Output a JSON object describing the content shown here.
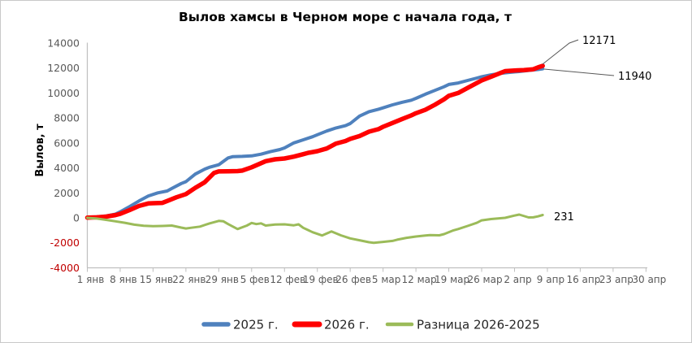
{
  "frame": {
    "background": "#FFFFFF",
    "border_color": "#C9C9C9"
  },
  "title": {
    "text": "Вылов хамсы в Черном море с начала года, т"
  },
  "axis_style": {
    "axis_color": "#BFBFBF",
    "label_color": "#595959",
    "negative_label_color": "#C00000"
  },
  "annotations": [
    {
      "text": "12171"
    },
    {
      "text": "11940"
    },
    {
      "text": "231"
    }
  ],
  "chart_data": {
    "type": "line",
    "title": "Вылов хамсы в Черном море с начала года, т",
    "xlabel": "",
    "ylabel": "Вылов, т",
    "ylim": [
      -4000,
      14000
    ],
    "ytick_step": 2000,
    "grid": false,
    "legend_position": "bottom",
    "x_tick_labels": [
      "1 янв",
      "8 янв",
      "15 янв",
      "22 янв",
      "29 янв",
      "5 фев",
      "12 фев",
      "19 фев",
      "26 фев",
      "5 мар",
      "12 мар",
      "19 мар",
      "26 мар",
      "2 апр",
      "9 апр",
      "16 апр",
      "23 апр",
      "30 апр"
    ],
    "x_axis_note": "daily categories, day 0 = 1 янв, weekly tick labels, axis extends to 30 апр (day 119), data ends ~9 апр",
    "series": [
      {
        "name": "2025 г.",
        "color": "#4F81BD",
        "width": 4,
        "end_value_label": "11940",
        "points": [
          [
            0,
            30
          ],
          [
            2,
            80
          ],
          [
            4,
            150
          ],
          [
            6,
            300
          ],
          [
            7,
            480
          ],
          [
            9,
            900
          ],
          [
            11,
            1350
          ],
          [
            13,
            1750
          ],
          [
            15,
            2000
          ],
          [
            17,
            2150
          ],
          [
            18,
            2350
          ],
          [
            20,
            2750
          ],
          [
            21,
            2900
          ],
          [
            23,
            3500
          ],
          [
            25,
            3900
          ],
          [
            26,
            4050
          ],
          [
            28,
            4250
          ],
          [
            30,
            4800
          ],
          [
            31,
            4900
          ],
          [
            33,
            4920
          ],
          [
            35,
            4960
          ],
          [
            37,
            5100
          ],
          [
            39,
            5300
          ],
          [
            41,
            5470
          ],
          [
            42,
            5600
          ],
          [
            44,
            6000
          ],
          [
            46,
            6250
          ],
          [
            48,
            6500
          ],
          [
            49,
            6650
          ],
          [
            51,
            6950
          ],
          [
            53,
            7200
          ],
          [
            55,
            7380
          ],
          [
            56,
            7550
          ],
          [
            58,
            8150
          ],
          [
            60,
            8500
          ],
          [
            62,
            8700
          ],
          [
            63,
            8810
          ],
          [
            65,
            9050
          ],
          [
            67,
            9250
          ],
          [
            69,
            9420
          ],
          [
            70,
            9570
          ],
          [
            72,
            9900
          ],
          [
            74,
            10200
          ],
          [
            76,
            10500
          ],
          [
            77,
            10680
          ],
          [
            79,
            10800
          ],
          [
            81,
            11000
          ],
          [
            83,
            11200
          ],
          [
            84,
            11300
          ],
          [
            86,
            11450
          ],
          [
            88,
            11570
          ],
          [
            90,
            11650
          ],
          [
            92,
            11720
          ],
          [
            94,
            11800
          ],
          [
            96,
            11880
          ],
          [
            97,
            11940
          ]
        ]
      },
      {
        "name": "2026 г.",
        "color": "#FF0000",
        "width": 5.5,
        "end_value_label": "12171",
        "points": [
          [
            0,
            10
          ],
          [
            2,
            40
          ],
          [
            4,
            100
          ],
          [
            6,
            220
          ],
          [
            7,
            320
          ],
          [
            9,
            620
          ],
          [
            11,
            950
          ],
          [
            13,
            1150
          ],
          [
            14,
            1170
          ],
          [
            16,
            1200
          ],
          [
            17,
            1350
          ],
          [
            19,
            1650
          ],
          [
            21,
            1900
          ],
          [
            23,
            2400
          ],
          [
            25,
            2850
          ],
          [
            27,
            3600
          ],
          [
            28,
            3720
          ],
          [
            30,
            3730
          ],
          [
            32,
            3740
          ],
          [
            33,
            3780
          ],
          [
            35,
            4050
          ],
          [
            38,
            4540
          ],
          [
            40,
            4690
          ],
          [
            42,
            4750
          ],
          [
            44,
            4900
          ],
          [
            46,
            5100
          ],
          [
            47,
            5200
          ],
          [
            49,
            5340
          ],
          [
            51,
            5550
          ],
          [
            53,
            5950
          ],
          [
            55,
            6150
          ],
          [
            56,
            6320
          ],
          [
            58,
            6550
          ],
          [
            60,
            6900
          ],
          [
            62,
            7100
          ],
          [
            63,
            7290
          ],
          [
            65,
            7600
          ],
          [
            67,
            7900
          ],
          [
            69,
            8200
          ],
          [
            70,
            8380
          ],
          [
            72,
            8650
          ],
          [
            74,
            9050
          ],
          [
            76,
            9500
          ],
          [
            77,
            9770
          ],
          [
            79,
            10000
          ],
          [
            81,
            10400
          ],
          [
            83,
            10800
          ],
          [
            84,
            11000
          ],
          [
            86,
            11300
          ],
          [
            88,
            11600
          ],
          [
            89,
            11750
          ],
          [
            91,
            11800
          ],
          [
            93,
            11830
          ],
          [
            95,
            11900
          ],
          [
            96,
            12050
          ],
          [
            97,
            12171
          ]
        ]
      },
      {
        "name": "Разница 2026-2025",
        "color": "#9BBB59",
        "width": 3,
        "end_value_label": "231",
        "points": [
          [
            0,
            0
          ],
          [
            2,
            -60
          ],
          [
            4,
            -160
          ],
          [
            6,
            -280
          ],
          [
            8,
            -400
          ],
          [
            10,
            -550
          ],
          [
            12,
            -640
          ],
          [
            14,
            -670
          ],
          [
            16,
            -650
          ],
          [
            18,
            -620
          ],
          [
            20,
            -780
          ],
          [
            21,
            -850
          ],
          [
            22,
            -800
          ],
          [
            24,
            -700
          ],
          [
            26,
            -450
          ],
          [
            28,
            -250
          ],
          [
            29,
            -280
          ],
          [
            30,
            -500
          ],
          [
            32,
            -900
          ],
          [
            34,
            -620
          ],
          [
            35,
            -410
          ],
          [
            36,
            -500
          ],
          [
            37,
            -440
          ],
          [
            38,
            -620
          ],
          [
            40,
            -540
          ],
          [
            42,
            -520
          ],
          [
            44,
            -600
          ],
          [
            45,
            -520
          ],
          [
            46,
            -800
          ],
          [
            48,
            -1150
          ],
          [
            50,
            -1410
          ],
          [
            52,
            -1090
          ],
          [
            54,
            -1400
          ],
          [
            56,
            -1650
          ],
          [
            58,
            -1800
          ],
          [
            60,
            -1950
          ],
          [
            61,
            -2000
          ],
          [
            63,
            -1930
          ],
          [
            65,
            -1850
          ],
          [
            66,
            -1750
          ],
          [
            68,
            -1600
          ],
          [
            70,
            -1500
          ],
          [
            72,
            -1420
          ],
          [
            73,
            -1380
          ],
          [
            75,
            -1400
          ],
          [
            76,
            -1300
          ],
          [
            78,
            -1000
          ],
          [
            79,
            -900
          ],
          [
            81,
            -650
          ],
          [
            83,
            -400
          ],
          [
            84,
            -200
          ],
          [
            86,
            -100
          ],
          [
            88,
            -30
          ],
          [
            89,
            0
          ],
          [
            91,
            180
          ],
          [
            92,
            260
          ],
          [
            94,
            30
          ],
          [
            95,
            40
          ],
          [
            96,
            120
          ],
          [
            97,
            231
          ]
        ]
      }
    ]
  },
  "legend": {
    "items": [
      {
        "label": "2025 г."
      },
      {
        "label": "2026 г."
      },
      {
        "label": "Разница 2026-2025"
      }
    ]
  }
}
